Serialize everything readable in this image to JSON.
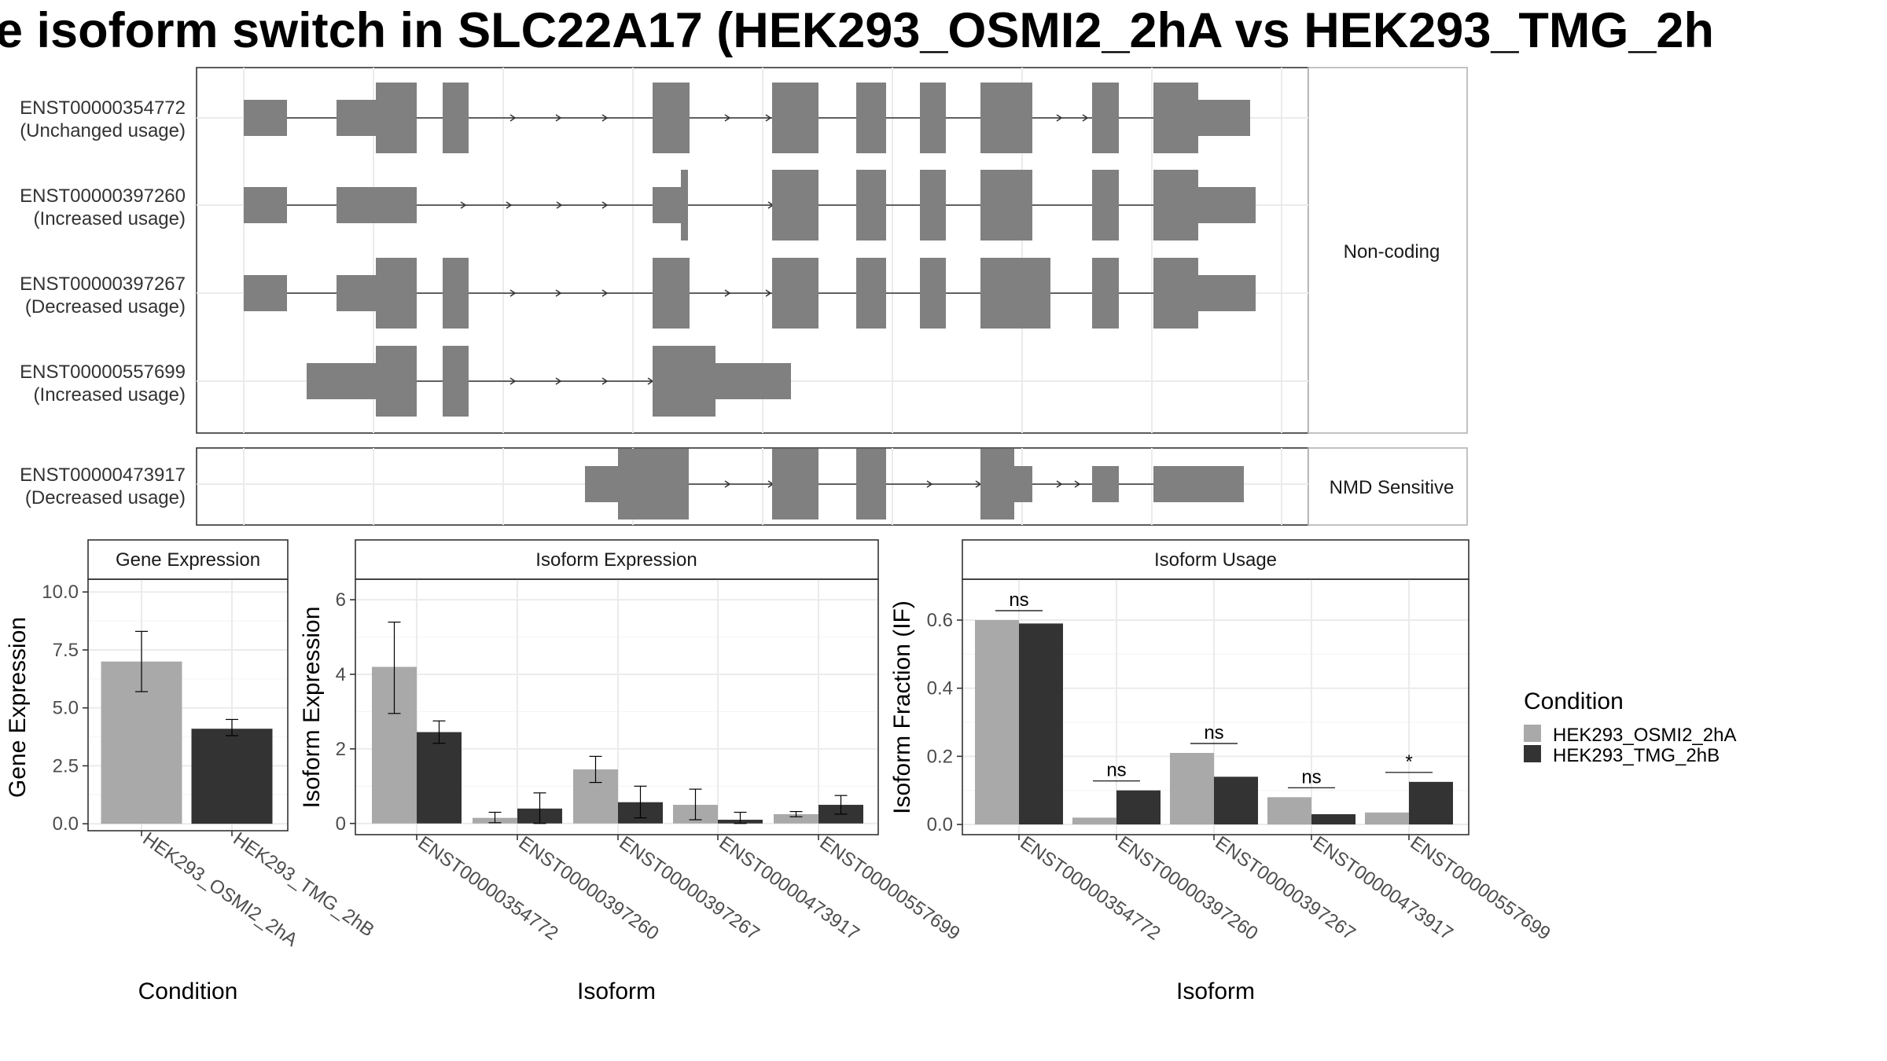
{
  "title": "e isoform switch in SLC22A17 (HEK293_OSMI2_2hA vs HEK293_TMG_2h",
  "colors": {
    "condition_a": "#a9a9a9",
    "condition_b": "#333333",
    "structure": "#808080"
  },
  "structure_panel": {
    "facets": [
      {
        "label": "Non-coding",
        "transcripts": [
          {
            "id": "ENST00000354772",
            "usage": "(Unchanged usage)"
          },
          {
            "id": "ENST00000397260",
            "usage": "(Increased usage)"
          },
          {
            "id": "ENST00000397267",
            "usage": "(Decreased usage)"
          },
          {
            "id": "ENST00000557699",
            "usage": "(Increased usage)"
          }
        ]
      },
      {
        "label": "NMD Sensitive",
        "transcripts": [
          {
            "id": "ENST00000473917",
            "usage": "(Decreased usage)"
          }
        ]
      }
    ]
  },
  "chart_data": [
    {
      "type": "bar",
      "title": "Gene Expression",
      "xlabel": "Condition",
      "ylabel": "Gene Expression",
      "ylim": [
        0,
        10
      ],
      "yticks": [
        "0.0",
        "2.5",
        "5.0",
        "7.5",
        "10.0"
      ],
      "categories": [
        "HEK293_OSMI2_2hA",
        "HEK293_TMG_2hB"
      ],
      "values": [
        7.0,
        4.1
      ],
      "error_low": [
        5.7,
        3.8
      ],
      "error_high": [
        8.3,
        4.5
      ]
    },
    {
      "type": "bar",
      "title": "Isoform Expression",
      "xlabel": "Isoform",
      "ylabel": "Isoform Expression",
      "ylim": [
        0,
        6.5
      ],
      "yticks": [
        "0",
        "2",
        "4",
        "6"
      ],
      "categories": [
        "ENST00000354772",
        "ENST00000397260",
        "ENST00000397267",
        "ENST00000473917",
        "ENST00000557699"
      ],
      "series": [
        {
          "name": "HEK293_OSMI2_2hA",
          "values": [
            4.2,
            0.15,
            1.45,
            0.5,
            0.25
          ],
          "error_low": [
            2.95,
            0.02,
            1.1,
            0.1,
            0.18
          ],
          "error_high": [
            5.4,
            0.3,
            1.8,
            0.92,
            0.32
          ]
        },
        {
          "name": "HEK293_TMG_2hB",
          "values": [
            2.45,
            0.4,
            0.57,
            0.1,
            0.5
          ],
          "error_low": [
            2.15,
            0.0,
            0.15,
            0.0,
            0.25
          ],
          "error_high": [
            2.75,
            0.82,
            1.0,
            0.3,
            0.75
          ]
        }
      ]
    },
    {
      "type": "bar",
      "title": "Isoform Usage",
      "xlabel": "Isoform",
      "ylabel": "Isoform Fraction (IF)",
      "ylim": [
        0,
        0.7
      ],
      "yticks": [
        "0.0",
        "0.2",
        "0.4",
        "0.6"
      ],
      "categories": [
        "ENST00000354772",
        "ENST00000397260",
        "ENST00000397267",
        "ENST00000473917",
        "ENST00000557699"
      ],
      "series": [
        {
          "name": "HEK293_OSMI2_2hA",
          "values": [
            0.6,
            0.02,
            0.21,
            0.08,
            0.035
          ]
        },
        {
          "name": "HEK293_TMG_2hB",
          "values": [
            0.59,
            0.1,
            0.14,
            0.03,
            0.125
          ]
        }
      ],
      "significance": [
        "ns",
        "ns",
        "ns",
        "ns",
        "*"
      ]
    }
  ],
  "legend": {
    "title": "Condition",
    "items": [
      "HEK293_OSMI2_2hA",
      "HEK293_TMG_2hB"
    ]
  }
}
